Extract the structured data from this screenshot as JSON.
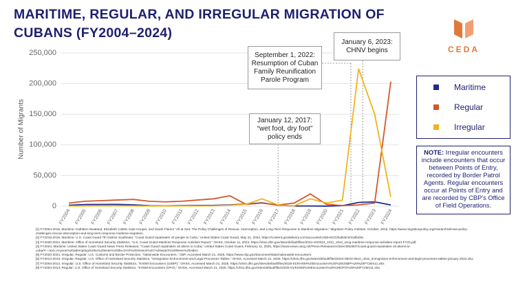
{
  "chart_data": {
    "type": "line",
    "title": [
      "MARITIME, REGULAR, AND IRREGULAR MIGRATION OF",
      "CUBANS (FY2004–2024)"
    ],
    "y_label": "Number of Migrants",
    "categories": [
      "FY2004",
      "FY2005",
      "FY2006",
      "FY2007",
      "FY2008",
      "FY2009",
      "FY2010",
      "FY2011",
      "FY2012",
      "FY2013",
      "FY2014",
      "FY2015",
      "FY2016",
      "FY2017",
      "FY2018",
      "FY2019",
      "FY2020",
      "FY2021",
      "FY2022",
      "FY2023",
      "FY2024"
    ],
    "series": [
      {
        "name": "Maritime",
        "color": "#1f2a8c",
        "values": [
          1500,
          2700,
          2800,
          2900,
          2200,
          800,
          400,
          1000,
          1300,
          1400,
          2100,
          3500,
          5400,
          1500,
          300,
          300,
          50,
          800,
          6000,
          7000,
          2000
        ]
      },
      {
        "name": "Regular",
        "color": "#d2572a",
        "values": [
          5000,
          8000,
          9000,
          10000,
          11000,
          8000,
          7000,
          8000,
          10000,
          12000,
          17000,
          3000,
          5000,
          2000,
          5000,
          20000,
          3000,
          1000,
          2000,
          5000,
          203000
        ]
      },
      {
        "name": "Irregular",
        "color": "#f2b21b",
        "values": [
          300,
          400,
          500,
          600,
          500,
          300,
          300,
          400,
          500,
          700,
          1500,
          3000,
          12000,
          2000,
          500,
          12000,
          5000,
          10000,
          224000,
          150000,
          15000
        ]
      }
    ],
    "ylim": [
      0,
      250000
    ],
    "yticks": [
      0,
      {
        "value": 50000,
        "label": "50,000"
      },
      {
        "value": 100000,
        "label": "100,000"
      },
      {
        "value": 150000,
        "label": "150,000"
      },
      {
        "value": 200000,
        "label": "200,000"
      },
      {
        "value": 250000,
        "label": "250,000"
      }
    ],
    "grid": true,
    "annotations": [
      "January 12, 2017: “wet foot, dry foot” policy ends",
      "September 1, 2022: Resumption of Cuban Family Reunification Parole Program",
      "January 6, 2023: CHNV begins"
    ]
  },
  "note_label": "NOTE:",
  "note": "Irregular encounters include encounters that occur between Points of Entry, recorded by Border Patrol Agents. Regular encounters occur at Points of Entry and are recorded by CBP’s Office of Field Operations.",
  "logo": "CEDA",
  "footnotes": [
    "[1] FY2004-2015, Maritime: Kathleen Newland, Elizabeth Collett, Kate Hooper, and Sarah Flamm “All at Sea: The Policy Challenges of Rescue, Interception, and Long-Term Response to Maritime Migration,” Migration Policy Institute, October, 2016, https://www.migrationpolicy.org/research/all-sea-policy-challenges-rescue-interception-and-long-term-response-maritime-migration.",
    "[2] FY2016-2019, Maritime: U.S. Coast Guard 7th District Southeast, “Coast Guard repatriates 43 people to Cuba,” United States Coast Guard, May 21, 2022, https://content.govdelivery.com/accounts/USDHSCG/bulletins/318b4b6.",
    "[3] FY2020-2023, Maritime: Office of Homeland Security Statistics, “U.S. Coast Guard Maritime Response Activities Report,” OHSS, October 11, 2024, https://ohss.dhs.gov/sites/default/files/2024-10/2024_1011_ohss_uscg-maritime-response-activities-report-FY23.pdf",
    "[4] FY2024, Maritime: United States Coast Guard News Press Releases, “Coast Guard repatriates 16 aliens to Cuba,” United States Coast Guard, February 11, 2025, https://www.news.uscg.mil/Press-Releases/Article/4062607/coast-guard-repatriates-16-aliens-to-cuba/#:~:text=Anyone%20attempting%20to%20enter%20the,DVS%20mission%2C%20watch%20these%20video.",
    "[5] FY2020-2024, Irregular, Regular: U.S. Customs and Border Protection, “Nationwide Encounters,” CBP, Accessed March 21, 2025, https://www.cbp.gov/document/stats/nationwide-encounters.",
    "[6] FY2014-2019, Irregular, Regular: U.S. Office of Homeland Security Statistics, “Immigration Enforcement and Legal Processes Tables,” OHSS, Accessed March 21, 2025. https://ohss.dhs.gov/sites/default/files/2024-05/24-0510_ohss_immigration-enforcement-and-legal-processes-tables-january-2024.xlsx",
    "[7] FY2004-2013, Irregular: U.S. Office of Homeland Security Statistics, “KHSM Encounters (USBP),” OHSS, Accessed March 21, 2025. https://ohss.dhs.gov/sites/default/files/2025-01/KHSM%20Encounters%20%28USBP%29%20FY25m11.xlsx",
    "[8] FY2004-2013, Regular: U.S. Office of Homeland Security Statistics, “KHSM Encounters (OFO),” OHSS, Accessed March 21, 2025. https://ohss.dhs.gov/sites/default/files/2025-01/KHSM%20Encounters%20%28OFO%29%20FY25m11.xlsx"
  ]
}
